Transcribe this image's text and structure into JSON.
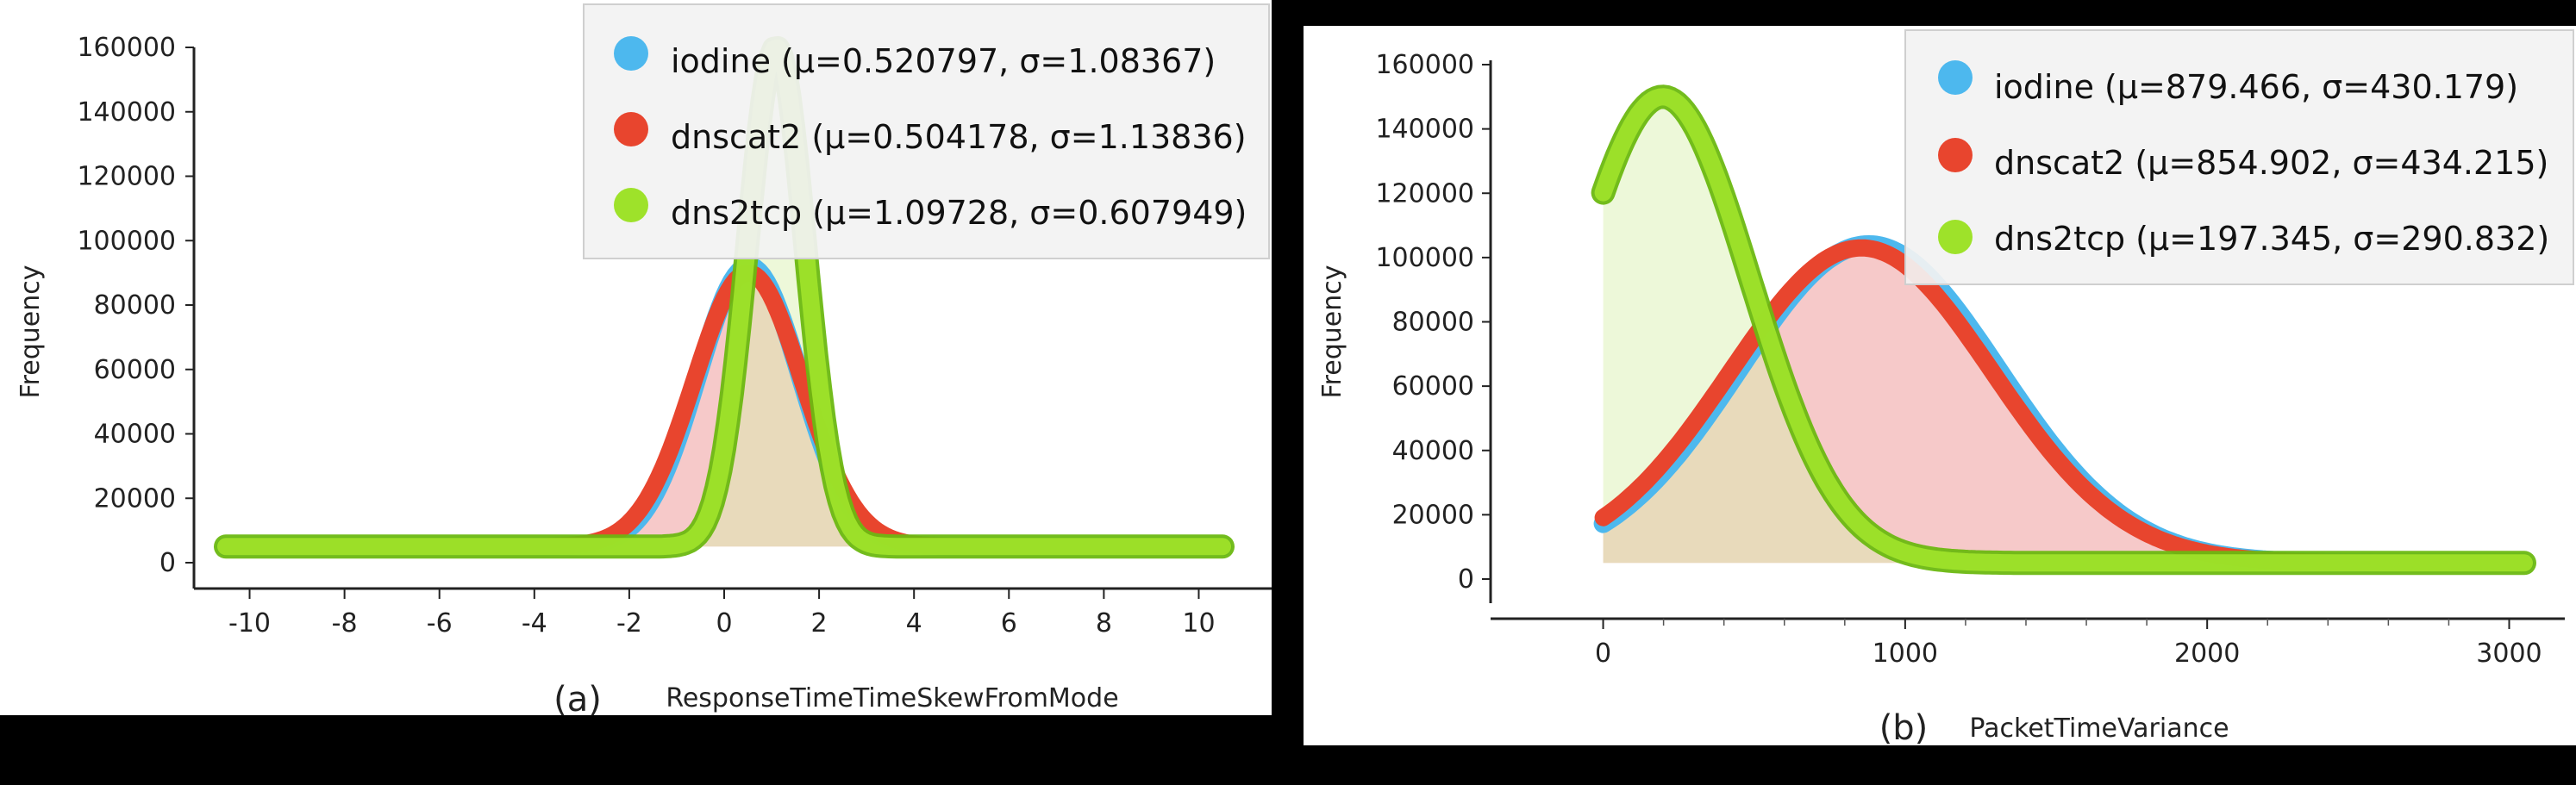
{
  "figure": {
    "panel_a_caption": "(a)",
    "panel_b_caption": "(b)"
  },
  "colors": {
    "iodine": "#4db8ee",
    "dnscat2": "#e8452e",
    "dns2tcp": "#9ee22a",
    "dns2tcp_outline": "#6cb811",
    "background": "#000000",
    "panel": "#ffffff"
  },
  "chart_data": [
    {
      "type": "line",
      "panel": "(a)",
      "title": "",
      "xlabel": "ResponseTimeTimeSkewFromMode",
      "ylabel": "Frequency",
      "xlim": [
        -10.5,
        10.5
      ],
      "ylim": [
        0,
        160000
      ],
      "x_ticks": [
        -10,
        -8,
        -6,
        -4,
        -2,
        0,
        2,
        4,
        6,
        8,
        10
      ],
      "y_ticks": [
        0,
        20000,
        40000,
        60000,
        80000,
        100000,
        120000,
        140000,
        160000
      ],
      "curve": "gaussian",
      "baseline": 5000,
      "legend_position": "top-right",
      "series": [
        {
          "name": "iodine",
          "legend": "iodine (μ=0.520797, σ=1.08367)",
          "mu": 0.520797,
          "sigma": 1.08367,
          "peak": 92000,
          "color": "#4db8ee"
        },
        {
          "name": "dnscat2",
          "legend": "dnscat2 (μ=0.504178, σ=1.13836)",
          "mu": 0.504178,
          "sigma": 1.13836,
          "peak": 90000,
          "color": "#e8452e"
        },
        {
          "name": "dns2tcp",
          "legend": "dns2tcp (μ=1.09728, σ=0.607949)",
          "mu": 1.09728,
          "sigma": 0.607949,
          "peak": 160000,
          "color": "#9ee22a"
        }
      ]
    },
    {
      "type": "line",
      "panel": "(b)",
      "title": "",
      "xlabel": "PacketTimeVariance",
      "ylabel": "Frequency",
      "xlim": [
        -170,
        3050
      ],
      "ylim": [
        0,
        160000
      ],
      "x_ticks": [
        0,
        1000,
        2000,
        3000
      ],
      "y_ticks": [
        0,
        20000,
        40000,
        60000,
        80000,
        100000,
        120000,
        140000,
        160000
      ],
      "curve": "gaussian",
      "baseline": 5000,
      "legend_position": "top-right",
      "series": [
        {
          "name": "iodine",
          "legend": "iodine (μ=879.466, σ=430.179)",
          "mu": 879.466,
          "sigma": 430.179,
          "peak": 104000,
          "color": "#4db8ee"
        },
        {
          "name": "dnscat2",
          "legend": "dnscat2 (μ=854.902, σ=434.215)",
          "mu": 854.902,
          "sigma": 434.215,
          "peak": 103000,
          "color": "#e8452e"
        },
        {
          "name": "dns2tcp",
          "legend": "dns2tcp (μ=197.345, σ=290.832)",
          "mu": 197.345,
          "sigma": 290.832,
          "peak": 150000,
          "color": "#9ee22a"
        }
      ]
    }
  ]
}
